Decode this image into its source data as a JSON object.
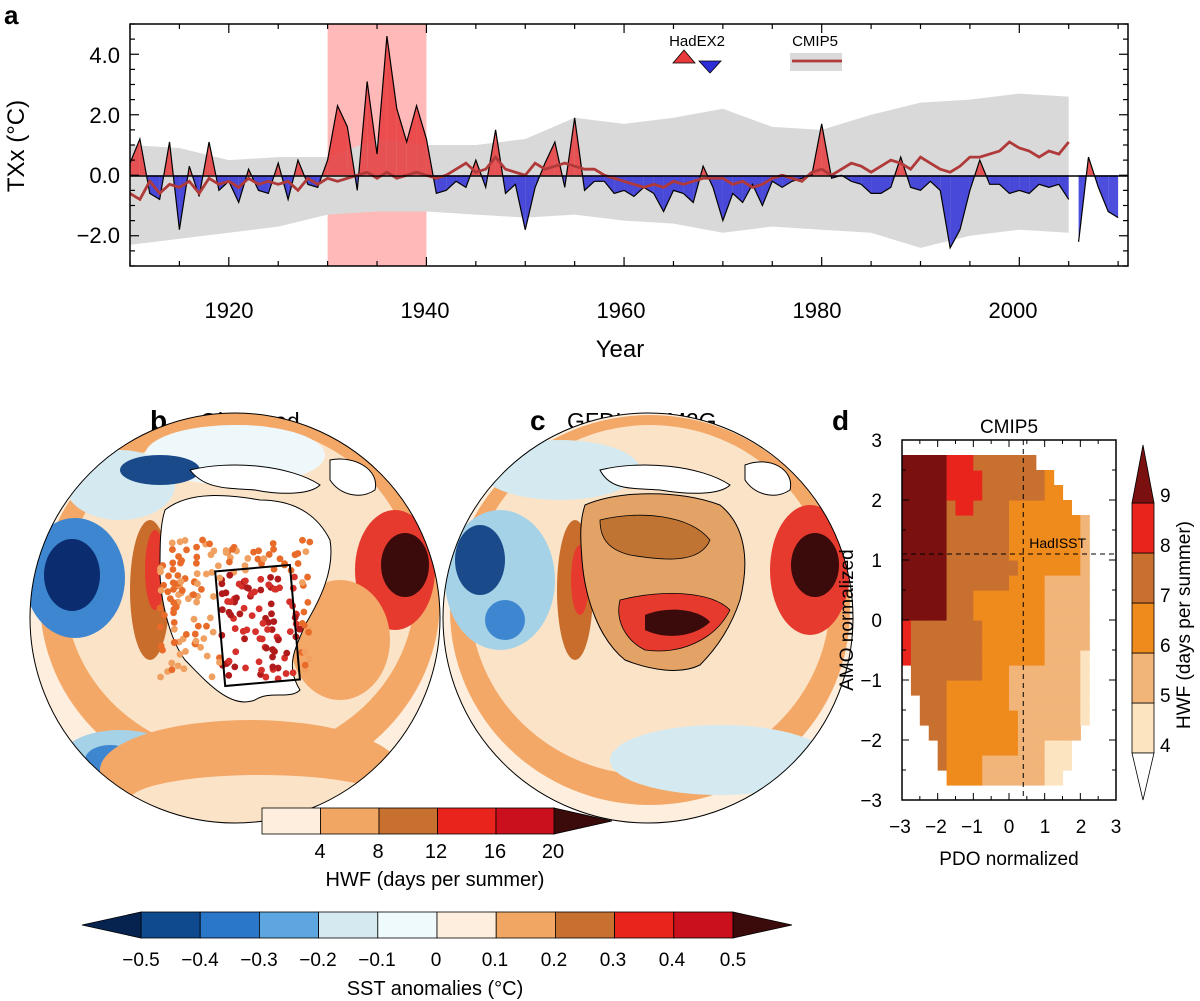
{
  "panel_a": {
    "letter": "a",
    "ylabel": "TXx (°C)",
    "xlabel": "Year",
    "legend_hadex": "HadEX2",
    "legend_cmip": "CMIP5",
    "yticks": [
      "4.0",
      "2.0",
      "0.0",
      "−2.0"
    ],
    "xticks": [
      "1920",
      "1940",
      "1960",
      "1980",
      "2000"
    ]
  },
  "panel_b": {
    "letter": "b",
    "title": "Observed"
  },
  "panel_c": {
    "letter": "c",
    "title": "GFDL-ESM2G"
  },
  "panel_d": {
    "letter": "d",
    "title": "CMIP5",
    "xlabel": "PDO normalized",
    "ylabel": "AMO normalized",
    "annotation": "HadISST",
    "xticks": [
      "−3",
      "−2",
      "−1",
      "0",
      "1",
      "2",
      "3"
    ],
    "yticks": [
      "3",
      "2",
      "1",
      "0",
      "−1",
      "−2",
      "−3"
    ],
    "cb_label": "HWF (days per summer)",
    "cb_ticks": [
      "9",
      "8",
      "7",
      "6",
      "5",
      "4"
    ]
  },
  "hwf_colorbar": {
    "label": "HWF (days per summer)",
    "ticks": [
      "4",
      "8",
      "12",
      "16",
      "20"
    ]
  },
  "sst_colorbar": {
    "label": "SST anomalies (°C)",
    "ticks": [
      "−0.5",
      "−0.4",
      "−0.3",
      "−0.2",
      "−0.1",
      "0",
      "0.1",
      "0.2",
      "0.3",
      "0.4",
      "0.5"
    ]
  },
  "colors": {
    "positive": "#e8393b",
    "negative": "#2e2ed8",
    "cmip": "#b03a3a",
    "spread": "#d9d9d9",
    "highlight": "#ffb9b9"
  },
  "chart_data": [
    {
      "type": "area",
      "xlabel": "Year",
      "ylabel": "TXx (°C)",
      "xlim": [
        1910,
        2011
      ],
      "ylim": [
        -3,
        5
      ],
      "highlight_years": [
        1930,
        1940
      ],
      "series": [
        {
          "name": "HadEX2",
          "x": [
            1910,
            1911,
            1912,
            1913,
            1914,
            1915,
            1916,
            1917,
            1918,
            1919,
            1920,
            1921,
            1922,
            1923,
            1924,
            1925,
            1926,
            1927,
            1928,
            1929,
            1930,
            1931,
            1932,
            1933,
            1934,
            1935,
            1936,
            1937,
            1938,
            1939,
            1940,
            1941,
            1942,
            1943,
            1944,
            1945,
            1946,
            1947,
            1948,
            1949,
            1950,
            1951,
            1952,
            1953,
            1954,
            1955,
            1956,
            1957,
            1958,
            1959,
            1960,
            1961,
            1962,
            1963,
            1964,
            1965,
            1966,
            1967,
            1968,
            1969,
            1970,
            1971,
            1972,
            1973,
            1974,
            1975,
            1976,
            1977,
            1978,
            1979,
            1980,
            1981,
            1982,
            1983,
            1984,
            1985,
            1986,
            1987,
            1988,
            1989,
            1990,
            1991,
            1992,
            1993,
            1994,
            1995,
            1996,
            1997,
            1998,
            1999,
            2000,
            2001,
            2002,
            2003,
            2004,
            2005
          ],
          "values": [
            0.4,
            1.2,
            -0.6,
            -0.8,
            1.1,
            -1.8,
            0.3,
            -0.7,
            1.1,
            -0.5,
            -0.2,
            -0.9,
            0.2,
            -0.5,
            -0.6,
            0.4,
            -0.8,
            0.5,
            -0.3,
            -0.4,
            0.5,
            2.3,
            1.6,
            -0.5,
            3.1,
            0.7,
            4.6,
            2.2,
            1.1,
            2.3,
            1.2,
            -0.6,
            -0.5,
            -0.2,
            -0.4,
            0.5,
            -0.4,
            1.5,
            -0.6,
            -0.3,
            -1.8,
            -0.4,
            0.4,
            1.1,
            -0.4,
            1.9,
            -0.5,
            -0.2,
            -0.2,
            -0.6,
            -0.5,
            -0.7,
            -0.4,
            -0.6,
            -1.2,
            -0.5,
            -0.6,
            -0.9,
            0.3,
            -0.4,
            -1.5,
            -0.6,
            -0.9,
            -0.3,
            -1.0,
            -0.2,
            -0.4,
            -0.2,
            -0.1,
            0.0,
            1.7,
            -0.1,
            0.0,
            -0.2,
            -0.3,
            -0.6,
            -0.6,
            -0.4,
            0.6,
            -0.4,
            -0.5,
            -0.2,
            -0.5,
            -2.4,
            -1.8,
            -0.5,
            0.5,
            -0.3,
            -0.3,
            -0.6,
            -0.5,
            -0.6,
            -0.3,
            -0.4,
            -0.3,
            -0.8
          ]
        },
        {
          "name": "HadEX2 (continued)",
          "x": [
            2006,
            2007,
            2008,
            2009,
            2010
          ],
          "values": [
            -2.2,
            0.6,
            -0.4,
            -1.2,
            -1.4
          ]
        },
        {
          "name": "CMIP5",
          "x": [
            1910,
            1911,
            1912,
            1913,
            1914,
            1915,
            1916,
            1917,
            1918,
            1919,
            1920,
            1921,
            1922,
            1923,
            1924,
            1925,
            1926,
            1927,
            1928,
            1929,
            1930,
            1931,
            1932,
            1933,
            1934,
            1935,
            1936,
            1937,
            1938,
            1939,
            1940,
            1941,
            1942,
            1943,
            1944,
            1945,
            1946,
            1947,
            1948,
            1949,
            1950,
            1951,
            1952,
            1953,
            1954,
            1955,
            1956,
            1957,
            1958,
            1959,
            1960,
            1961,
            1962,
            1963,
            1964,
            1965,
            1966,
            1967,
            1968,
            1969,
            1970,
            1971,
            1972,
            1973,
            1974,
            1975,
            1976,
            1977,
            1978,
            1979,
            1980,
            1981,
            1982,
            1983,
            1984,
            1985,
            1986,
            1987,
            1988,
            1989,
            1990,
            1991,
            1992,
            1993,
            1994,
            1995,
            1996,
            1997,
            1998,
            1999,
            2000,
            2001,
            2002,
            2003,
            2004,
            2005
          ],
          "values": [
            -0.6,
            -0.8,
            -0.2,
            -0.6,
            -0.3,
            -0.4,
            -0.2,
            -0.6,
            -0.1,
            -0.3,
            -0.2,
            -0.4,
            -0.1,
            -0.3,
            -0.2,
            -0.3,
            -0.2,
            -0.5,
            -0.1,
            -0.3,
            -0.1,
            -0.2,
            -0.1,
            0.0,
            0.1,
            -0.1,
            0.1,
            -0.1,
            0.0,
            0.1,
            0.0,
            -0.1,
            0.0,
            0.2,
            0.4,
            0.1,
            0.2,
            0.6,
            0.2,
            0.1,
            0.0,
            0.4,
            0.2,
            0.3,
            0.4,
            0.3,
            0.2,
            0.2,
            0.0,
            -0.1,
            -0.2,
            -0.3,
            -0.4,
            -0.3,
            -0.4,
            -0.2,
            -0.3,
            -0.2,
            -0.1,
            -0.1,
            -0.1,
            -0.3,
            -0.2,
            -0.4,
            -0.3,
            -0.1,
            0.0,
            -0.1,
            -0.2,
            0.1,
            0.2,
            0.0,
            0.2,
            0.4,
            0.3,
            0.1,
            0.3,
            0.5,
            0.4,
            0.2,
            0.6,
            0.4,
            0.2,
            0.1,
            0.3,
            0.6,
            0.6,
            0.7,
            0.8,
            1.1,
            0.9,
            0.8,
            0.6,
            0.8,
            0.7,
            1.1
          ]
        },
        {
          "name": "CMIP5 spread upper",
          "x": [
            1910,
            1915,
            1920,
            1925,
            1930,
            1935,
            1940,
            1945,
            1950,
            1955,
            1960,
            1965,
            1970,
            1975,
            1980,
            1985,
            1990,
            1995,
            2000,
            2005
          ],
          "values": [
            1.0,
            0.9,
            0.5,
            0.6,
            0.6,
            1.2,
            1.0,
            1.0,
            1.2,
            1.9,
            1.7,
            1.9,
            2.2,
            1.6,
            1.5,
            2.0,
            2.4,
            2.5,
            2.7,
            2.6
          ]
        },
        {
          "name": "CMIP5 spread lower",
          "x": [
            1910,
            1915,
            1920,
            1925,
            1930,
            1935,
            1940,
            1945,
            1950,
            1955,
            1960,
            1965,
            1970,
            1975,
            1980,
            1985,
            1990,
            1995,
            2000,
            2005
          ],
          "values": [
            -2.3,
            -2.1,
            -1.9,
            -1.7,
            -1.3,
            -1.2,
            -1.2,
            -1.3,
            -1.4,
            -1.3,
            -1.5,
            -1.6,
            -1.9,
            -1.7,
            -1.8,
            -1.9,
            -2.4,
            -2.0,
            -1.8,
            -1.9
          ]
        }
      ]
    },
    {
      "type": "heatmap",
      "title": "CMIP5",
      "xlabel": "PDO normalized",
      "ylabel": "AMO normalized",
      "xlim": [
        -3,
        3
      ],
      "ylim": [
        -3,
        3
      ],
      "colorbar": {
        "label": "HWF (days per summer)",
        "levels": [
          4,
          5,
          6,
          7,
          8,
          9
        ]
      },
      "reference_point": {
        "label": "HadISST",
        "pdo": 0.4,
        "amo": 1.1
      }
    }
  ]
}
